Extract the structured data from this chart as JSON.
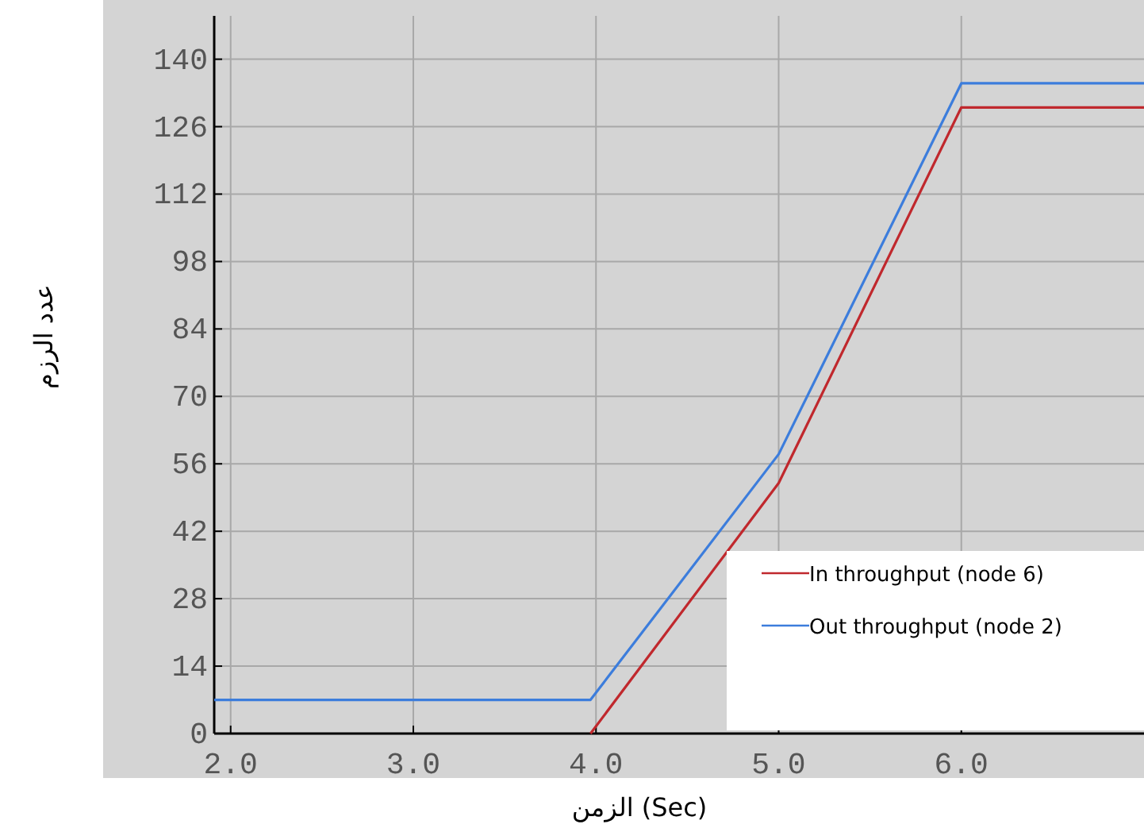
{
  "chart_data": {
    "type": "line",
    "xlabel": "الزمن (Sec)",
    "ylabel": "عدد الرزم",
    "xlim": [
      1.91,
      7.0
    ],
    "ylim": [
      0,
      149
    ],
    "xticks": [
      {
        "value": 2,
        "label": "2.0"
      },
      {
        "value": 3,
        "label": "3.0"
      },
      {
        "value": 4,
        "label": "4.0"
      },
      {
        "value": 5,
        "label": "5.0"
      },
      {
        "value": 6,
        "label": "6.0"
      }
    ],
    "yticks": [
      0,
      14,
      28,
      42,
      56,
      70,
      84,
      98,
      112,
      126,
      140
    ],
    "grid": true,
    "legend": "bottom right",
    "marker": "none",
    "line_style": "solid",
    "series": [
      {
        "name": "In throughput (node 6)",
        "color": "#c0282d",
        "x": [
          3.97,
          5.0,
          6.0,
          7.0
        ],
        "values": [
          0,
          52,
          130,
          130
        ]
      },
      {
        "name": "Out throughput (node 2)",
        "color": "#3c7ddc",
        "x": [
          1.91,
          3.97,
          5.0,
          6.0,
          7.0
        ],
        "values": [
          7,
          7,
          58,
          135,
          135
        ]
      }
    ]
  }
}
